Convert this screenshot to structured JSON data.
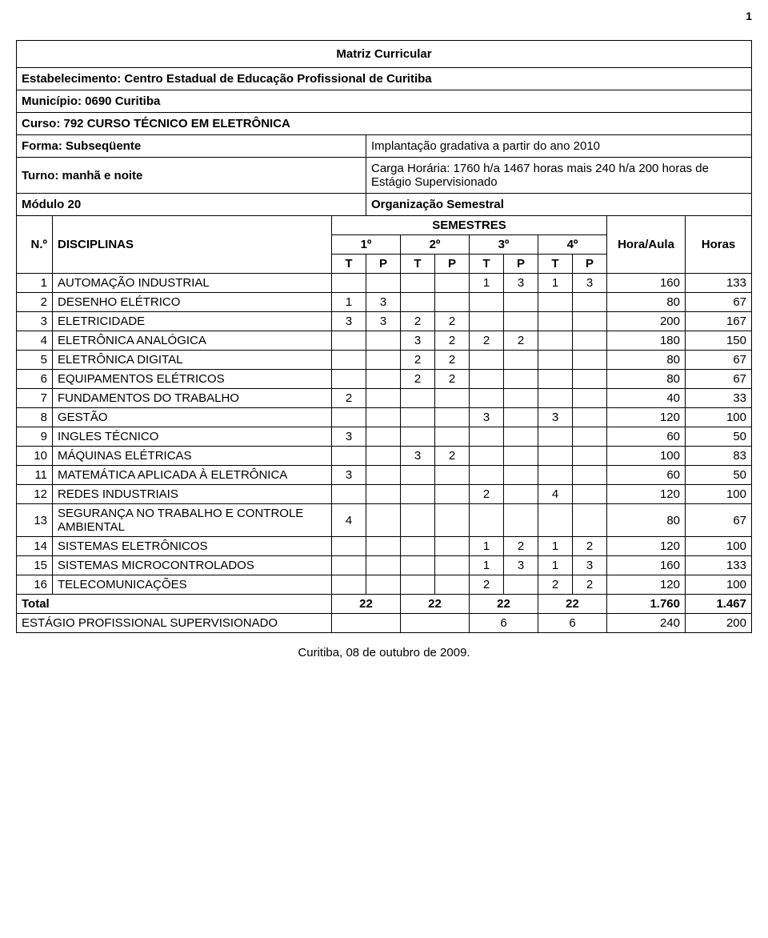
{
  "page_number": "1",
  "title": "Matriz Curricular",
  "header": {
    "estabelecimento_label": "Estabelecimento: Centro Estadual de Educação Profissional de Curitiba",
    "municipio_label": "Município: 0690 Curitiba",
    "curso_label": "Curso: 792 CURSO TÉCNICO EM ELETRÔNICA",
    "forma_label": "Forma: Subseqüente",
    "forma_value": "Implantação gradativa a partir do ano 2010",
    "turno_label": "Turno: manhã e noite",
    "turno_value": "Carga Horária: 1760 h/a 1467 horas mais 240 h/a 200 horas de Estágio Supervisionado",
    "modulo_label": "Módulo 20",
    "modulo_value": "Organização Semestral"
  },
  "columns": {
    "n": "N.º",
    "disciplinas": "DISCIPLINAS",
    "semestres": "SEMESTRES",
    "s1": "1º",
    "s2": "2º",
    "s3": "3º",
    "s4": "4º",
    "T": "T",
    "P": "P",
    "hora_aula": "Hora/Aula",
    "horas": "Horas"
  },
  "rows": [
    {
      "n": "1",
      "name": "AUTOMAÇÃO INDUSTRIAL",
      "c": [
        "",
        "",
        "",
        "",
        "1",
        "3",
        "1",
        "3"
      ],
      "ha": "160",
      "h": "133"
    },
    {
      "n": "2",
      "name": "DESENHO ELÉTRICO",
      "c": [
        "1",
        "3",
        "",
        "",
        "",
        "",
        "",
        ""
      ],
      "ha": "80",
      "h": "67"
    },
    {
      "n": "3",
      "name": "ELETRICIDADE",
      "c": [
        "3",
        "3",
        "2",
        "2",
        "",
        "",
        "",
        ""
      ],
      "ha": "200",
      "h": "167"
    },
    {
      "n": "4",
      "name": "ELETRÔNICA ANALÓGICA",
      "c": [
        "",
        "",
        "3",
        "2",
        "2",
        "2",
        "",
        ""
      ],
      "ha": "180",
      "h": "150"
    },
    {
      "n": "5",
      "name": "ELETRÔNICA DIGITAL",
      "c": [
        "",
        "",
        "2",
        "2",
        "",
        "",
        "",
        ""
      ],
      "ha": "80",
      "h": "67"
    },
    {
      "n": "6",
      "name": "EQUIPAMENTOS ELÉTRICOS",
      "c": [
        "",
        "",
        "2",
        "2",
        "",
        "",
        "",
        ""
      ],
      "ha": "80",
      "h": "67"
    },
    {
      "n": "7",
      "name": "FUNDAMENTOS DO TRABALHO",
      "c": [
        "2",
        "",
        "",
        "",
        "",
        "",
        "",
        ""
      ],
      "ha": "40",
      "h": "33"
    },
    {
      "n": "8",
      "name": "GESTÃO",
      "c": [
        "",
        "",
        "",
        "",
        "3",
        "",
        "3",
        ""
      ],
      "ha": "120",
      "h": "100"
    },
    {
      "n": "9",
      "name": "INGLES TÉCNICO",
      "c": [
        "3",
        "",
        "",
        "",
        "",
        "",
        "",
        ""
      ],
      "ha": "60",
      "h": "50"
    },
    {
      "n": "10",
      "name": "MÁQUINAS ELÉTRICAS",
      "c": [
        "",
        "",
        "3",
        "2",
        "",
        "",
        "",
        ""
      ],
      "ha": "100",
      "h": "83"
    },
    {
      "n": "11",
      "name": "MATEMÁTICA APLICADA À ELETRÔNICA",
      "c": [
        "3",
        "",
        "",
        "",
        "",
        "",
        "",
        ""
      ],
      "ha": "60",
      "h": "50"
    },
    {
      "n": "12",
      "name": "REDES INDUSTRIAIS",
      "c": [
        "",
        "",
        "",
        "",
        "2",
        "",
        "4",
        ""
      ],
      "ha": "120",
      "h": "100"
    },
    {
      "n": "13",
      "name": "SEGURANÇA NO TRABALHO E CONTROLE AMBIENTAL",
      "c": [
        "4",
        "",
        "",
        "",
        "",
        "",
        "",
        ""
      ],
      "ha": "80",
      "h": "67"
    },
    {
      "n": "14",
      "name": "SISTEMAS ELETRÔNICOS",
      "c": [
        "",
        "",
        "",
        "",
        "1",
        "2",
        "1",
        "2"
      ],
      "ha": "120",
      "h": "100"
    },
    {
      "n": "15",
      "name": "SISTEMAS MICROCONTROLADOS",
      "c": [
        "",
        "",
        "",
        "",
        "1",
        "3",
        "1",
        "3"
      ],
      "ha": "160",
      "h": "133"
    },
    {
      "n": "16",
      "name": "TELECOMUNICAÇÕES",
      "c": [
        "",
        "",
        "",
        "",
        "2",
        "",
        "2",
        "2"
      ],
      "ha": "120",
      "h": "100"
    }
  ],
  "total": {
    "label": "Total",
    "s1": "22",
    "s2": "22",
    "s3": "22",
    "s4": "22",
    "ha": "1.760",
    "h": "1.467"
  },
  "estagio": {
    "label": "ESTÁGIO PROFISSIONAL SUPERVISIONADO",
    "s3": "6",
    "s4": "6",
    "ha": "240",
    "h": "200"
  },
  "footer": "Curitiba, 08 de outubro de 2009."
}
